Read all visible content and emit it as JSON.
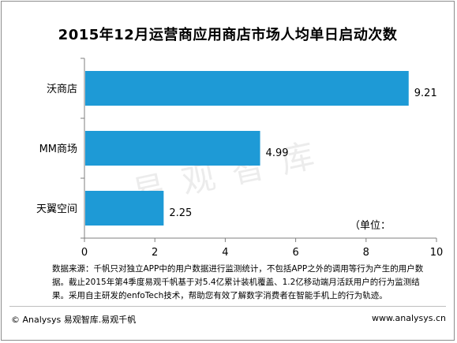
{
  "chart_data": {
    "type": "bar",
    "orientation": "horizontal",
    "title": "2015年12月运营商应用商店市场人均单日启动次数",
    "categories": [
      "沃商店",
      "MM商场",
      "天翼空间"
    ],
    "values": [
      9.21,
      4.99,
      2.25
    ],
    "data_labels": [
      "9.21",
      "4.99",
      "2.25"
    ],
    "xlim": [
      0,
      10
    ],
    "x_ticks": [
      "0",
      "2",
      "4",
      "6",
      "8",
      "10"
    ],
    "unit_label": "（单位：",
    "bar_color": "#1E9AD6",
    "grid": false,
    "legend": "none"
  },
  "watermark": "易观智库",
  "source_note": "数据来源：千帆只对独立APP中的用户数据进行监测统计，不包括APP之外的调用等行为产生的用户数据。截止2015年第4季度易观千帆基于对5.4亿累计装机覆盖、1.2亿移动端月活跃用户的行为监测结果。采用自主研发的enfoTech技术，帮助您有效了解数字消费者在智能手机上的行为轨迹。",
  "footer": {
    "copyright": "© Analysys 易观智库.易观千帆",
    "website": "www.analysys.cn"
  }
}
